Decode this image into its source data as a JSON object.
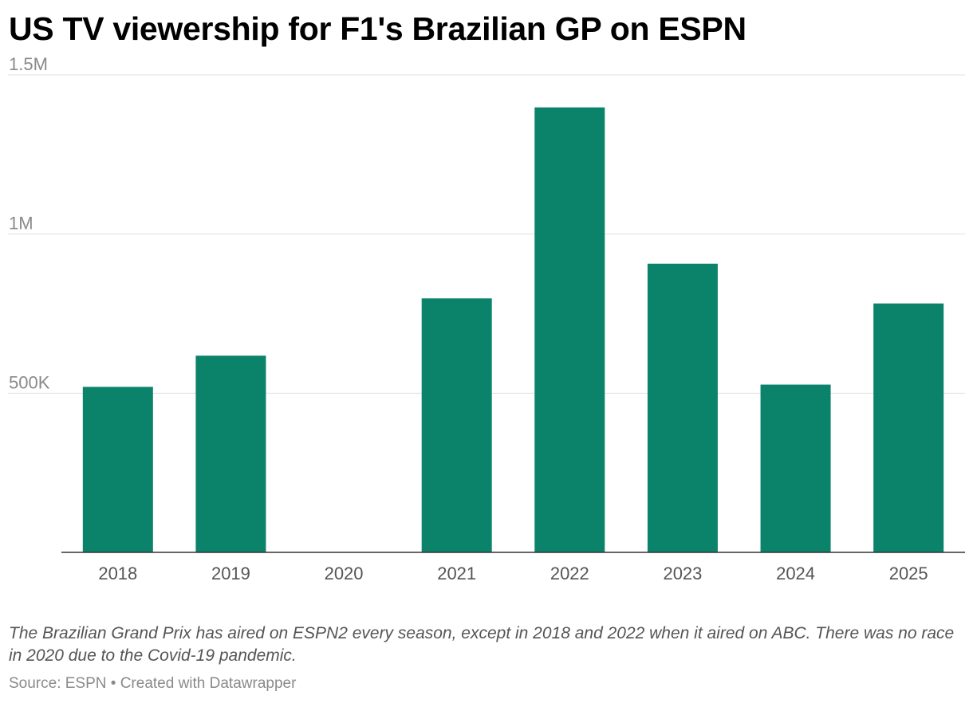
{
  "header": {
    "title": "US TV viewership for F1's Brazilian GP on ESPN"
  },
  "chart_data": {
    "type": "bar",
    "title": "US TV viewership for F1's Brazilian GP on ESPN",
    "xlabel": "",
    "ylabel": "",
    "categories": [
      "2018",
      "2019",
      "2020",
      "2021",
      "2022",
      "2023",
      "2024",
      "2025"
    ],
    "values": [
      520000,
      618000,
      null,
      798000,
      1398000,
      907000,
      527000,
      782000
    ],
    "ylim": [
      0,
      1500000
    ],
    "yticks": [
      500000,
      1000000,
      1500000
    ],
    "ytick_labels": [
      "500K",
      "1M",
      "1.5M"
    ],
    "grid": true,
    "legend": "none",
    "bar_color": "#0b826a"
  },
  "notes": {
    "text": "The Brazilian Grand Prix has aired on ESPN2 every season, except in 2018 and 2022 when it aired on ABC. There was no race in 2020 due to the Covid-19 pandemic."
  },
  "footer": {
    "text": "Source: ESPN • Created with Datawrapper"
  }
}
